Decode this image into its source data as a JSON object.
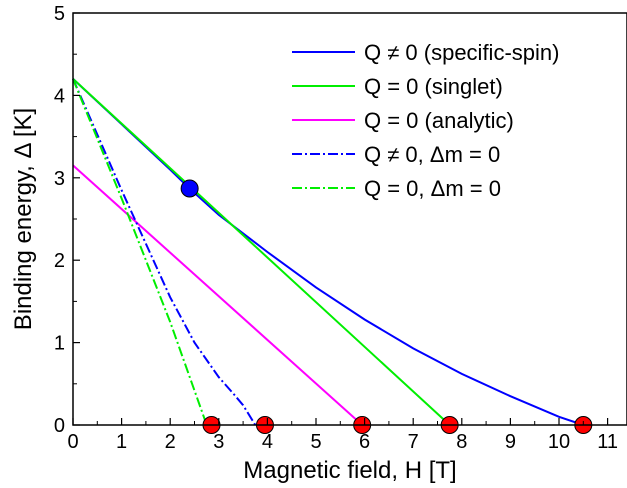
{
  "chart_data": {
    "type": "line",
    "xlabel": "Magnetic field, H [T]",
    "ylabel": "Binding energy, Δ [K]",
    "xlim": [
      0,
      11.5
    ],
    "ylim": [
      0,
      5
    ],
    "xticks": [
      "0",
      "1",
      "2",
      "3",
      "4",
      "5",
      "6",
      "7",
      "8",
      "9",
      "10",
      "11"
    ],
    "yticks": [
      "0",
      "1",
      "2",
      "3",
      "4",
      "5"
    ],
    "grid": false,
    "legend_position": "top-right",
    "series": [
      {
        "name": "Q ≠ 0 (specific-spin)",
        "color": "#0000ff",
        "style": "solid",
        "x": [
          0,
          1,
          2,
          2.4,
          3,
          4,
          5,
          6,
          7,
          8,
          9,
          10,
          10.5
        ],
        "y": [
          4.2,
          3.65,
          3.1,
          2.87,
          2.55,
          2.1,
          1.67,
          1.28,
          0.93,
          0.62,
          0.35,
          0.1,
          0.0
        ]
      },
      {
        "name": "Q = 0 (singlet)",
        "color": "#00ee00",
        "style": "solid",
        "x": [
          0,
          7.75
        ],
        "y": [
          4.2,
          0.0
        ]
      },
      {
        "name": "Q = 0 (analytic)",
        "color": "#ff00ff",
        "style": "solid",
        "x": [
          0,
          5.95
        ],
        "y": [
          3.15,
          0.0
        ]
      },
      {
        "name": "Q ≠ 0, Δm = 0",
        "color": "#0000ff",
        "style": "dashdot",
        "x": [
          0,
          1,
          2,
          2.5,
          3,
          3.3,
          3.5,
          3.75
        ],
        "y": [
          4.2,
          2.85,
          1.55,
          1.0,
          0.58,
          0.38,
          0.24,
          0.0
        ]
      },
      {
        "name": "Q = 0, Δm = 0",
        "color": "#00ee00",
        "style": "dashdot",
        "x": [
          0,
          1,
          2,
          2.75
        ],
        "y": [
          4.2,
          2.75,
          1.25,
          0.0
        ]
      }
    ],
    "markers": [
      {
        "x": 2.4,
        "y": 2.87,
        "color": "#0000ff"
      },
      {
        "x": 2.85,
        "y": 0.0,
        "color": "#ff0000"
      },
      {
        "x": 3.95,
        "y": 0.0,
        "color": "#ff0000"
      },
      {
        "x": 5.95,
        "y": 0.0,
        "color": "#ff0000"
      },
      {
        "x": 7.75,
        "y": 0.0,
        "color": "#ff0000"
      },
      {
        "x": 10.5,
        "y": 0.0,
        "color": "#ff0000"
      }
    ]
  }
}
